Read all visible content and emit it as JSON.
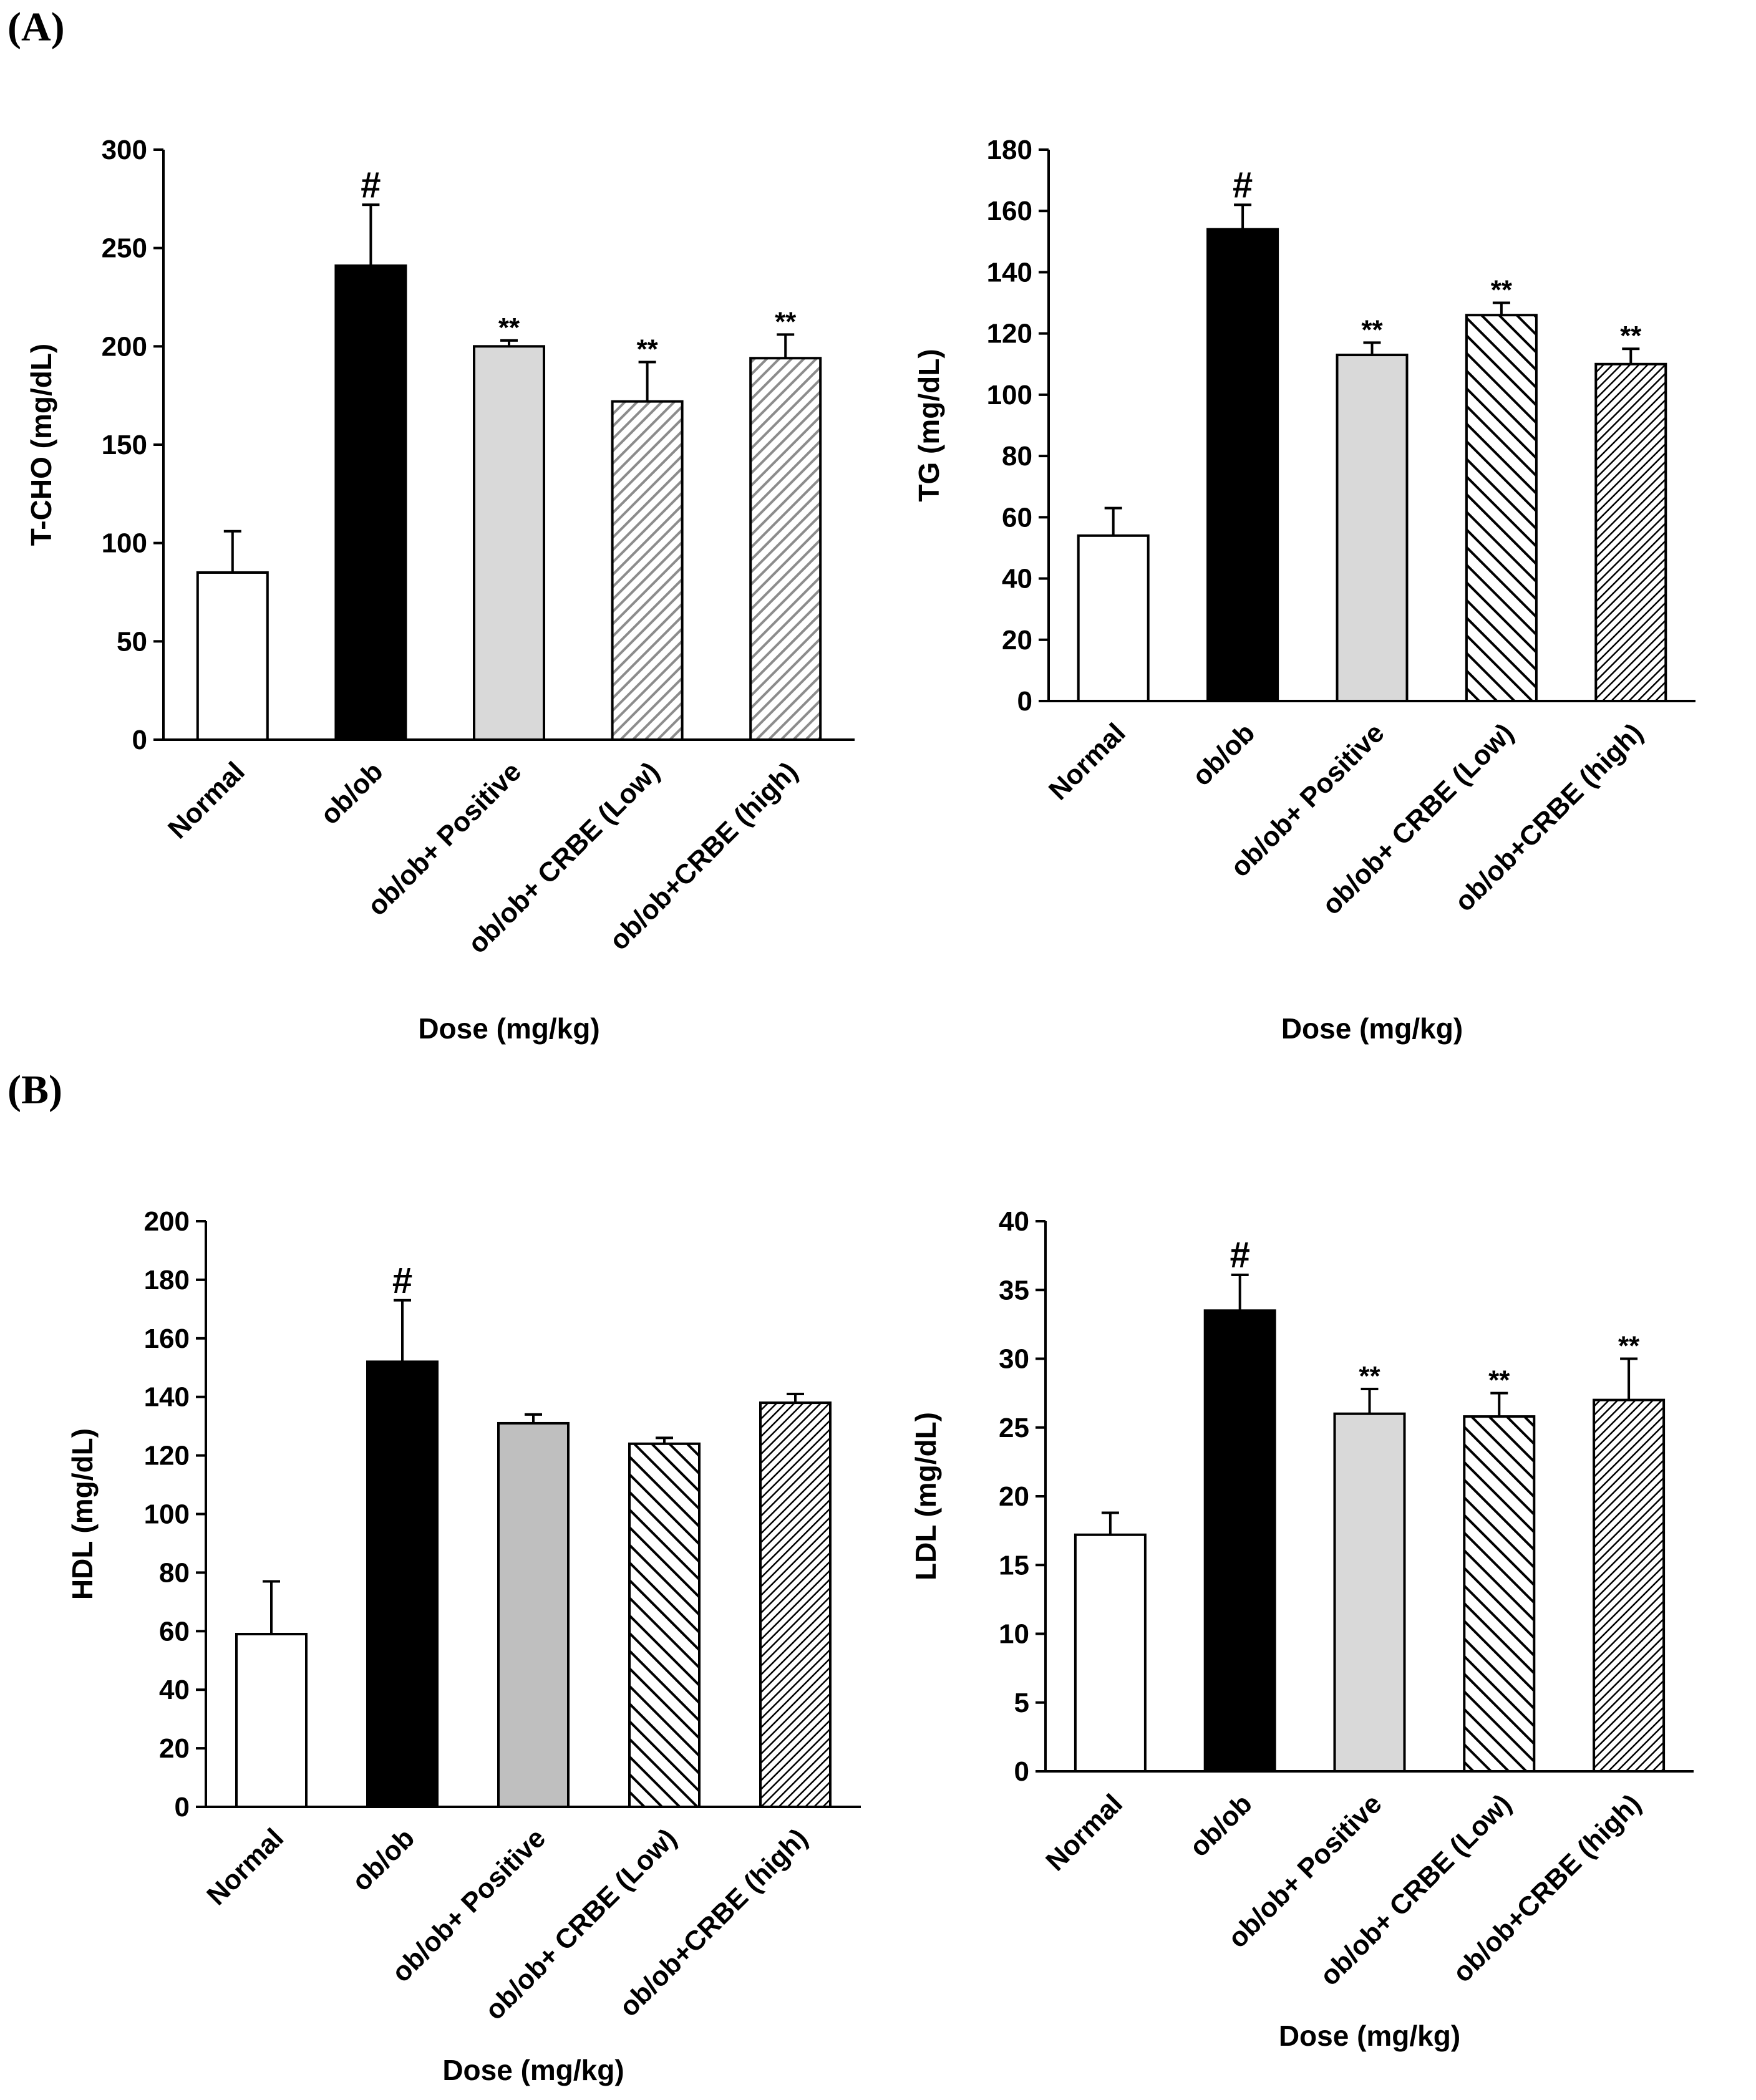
{
  "panels": [
    {
      "label": "(A)"
    },
    {
      "label": "(B)"
    }
  ],
  "colors": {
    "normal": "#ffffff",
    "obob": "#000000",
    "positive_light": "#d9d9d9",
    "positive_mid": "#bfbfbf",
    "hatch_grey": "#8c8c8c",
    "hatch_black": "#000000"
  },
  "chart_data": [
    {
      "id": "tcho",
      "type": "bar",
      "categories": [
        "Normal",
        "ob/ob",
        "ob/ob+ Positive",
        "ob/ob+ CRBE (Low)",
        "ob/ob+CRBE (high)"
      ],
      "values": [
        85,
        241,
        200,
        172,
        194
      ],
      "errors": [
        21,
        31,
        3,
        20,
        12
      ],
      "significance": [
        "",
        "#",
        "**",
        "**",
        "**"
      ],
      "ylabel": "T-CHO (mg/dL)",
      "xlabel": "Dose (mg/kg)",
      "ylim": [
        0,
        300
      ],
      "yticks": [
        "0",
        "50",
        "100",
        "150",
        "200",
        "250",
        "300"
      ],
      "grid": false
    },
    {
      "id": "tg",
      "type": "bar",
      "categories": [
        "Normal",
        "ob/ob",
        "ob/ob+ Positive",
        "ob/ob+ CRBE (Low)",
        "ob/ob+CRBE (high)"
      ],
      "values": [
        54,
        154,
        113,
        126,
        110
      ],
      "errors": [
        9,
        8,
        4,
        4,
        5
      ],
      "significance": [
        "",
        "#",
        "**",
        "**",
        "**"
      ],
      "ylabel": "TG (mg/dL)",
      "xlabel": "Dose (mg/kg)",
      "ylim": [
        0,
        180
      ],
      "yticks": [
        "0",
        "20",
        "40",
        "60",
        "80",
        "100",
        "120",
        "140",
        "160",
        "180"
      ],
      "grid": false
    },
    {
      "id": "hdl",
      "type": "bar",
      "categories": [
        "Normal",
        "ob/ob",
        "ob/ob+ Positive",
        "ob/ob+ CRBE (Low)",
        "ob/ob+CRBE (high)"
      ],
      "values": [
        59,
        152,
        131,
        124,
        138
      ],
      "errors": [
        18,
        21,
        3,
        2,
        3
      ],
      "significance": [
        "",
        "#",
        "",
        "",
        ""
      ],
      "ylabel": "HDL (mg/dL)",
      "xlabel": "Dose (mg/kg)",
      "ylim": [
        0,
        200
      ],
      "yticks": [
        "0",
        "20",
        "40",
        "60",
        "80",
        "100",
        "120",
        "140",
        "160",
        "180",
        "200"
      ],
      "grid": false
    },
    {
      "id": "ldl",
      "type": "bar",
      "categories": [
        "Normal",
        "ob/ob",
        "ob/ob+ Positive",
        "ob/ob+ CRBE (Low)",
        "ob/ob+CRBE (high)"
      ],
      "values": [
        17.2,
        33.5,
        26,
        25.8,
        27
      ],
      "errors": [
        1.6,
        2.6,
        1.8,
        1.7,
        3
      ],
      "significance": [
        "",
        "#",
        "**",
        "**",
        "**"
      ],
      "ylabel": "LDL (mg/dL)",
      "xlabel": "Dose (mg/kg)",
      "ylim": [
        0,
        40
      ],
      "yticks": [
        "0",
        "5",
        "10",
        "15",
        "20",
        "25",
        "30",
        "35",
        "40"
      ],
      "grid": false
    }
  ]
}
